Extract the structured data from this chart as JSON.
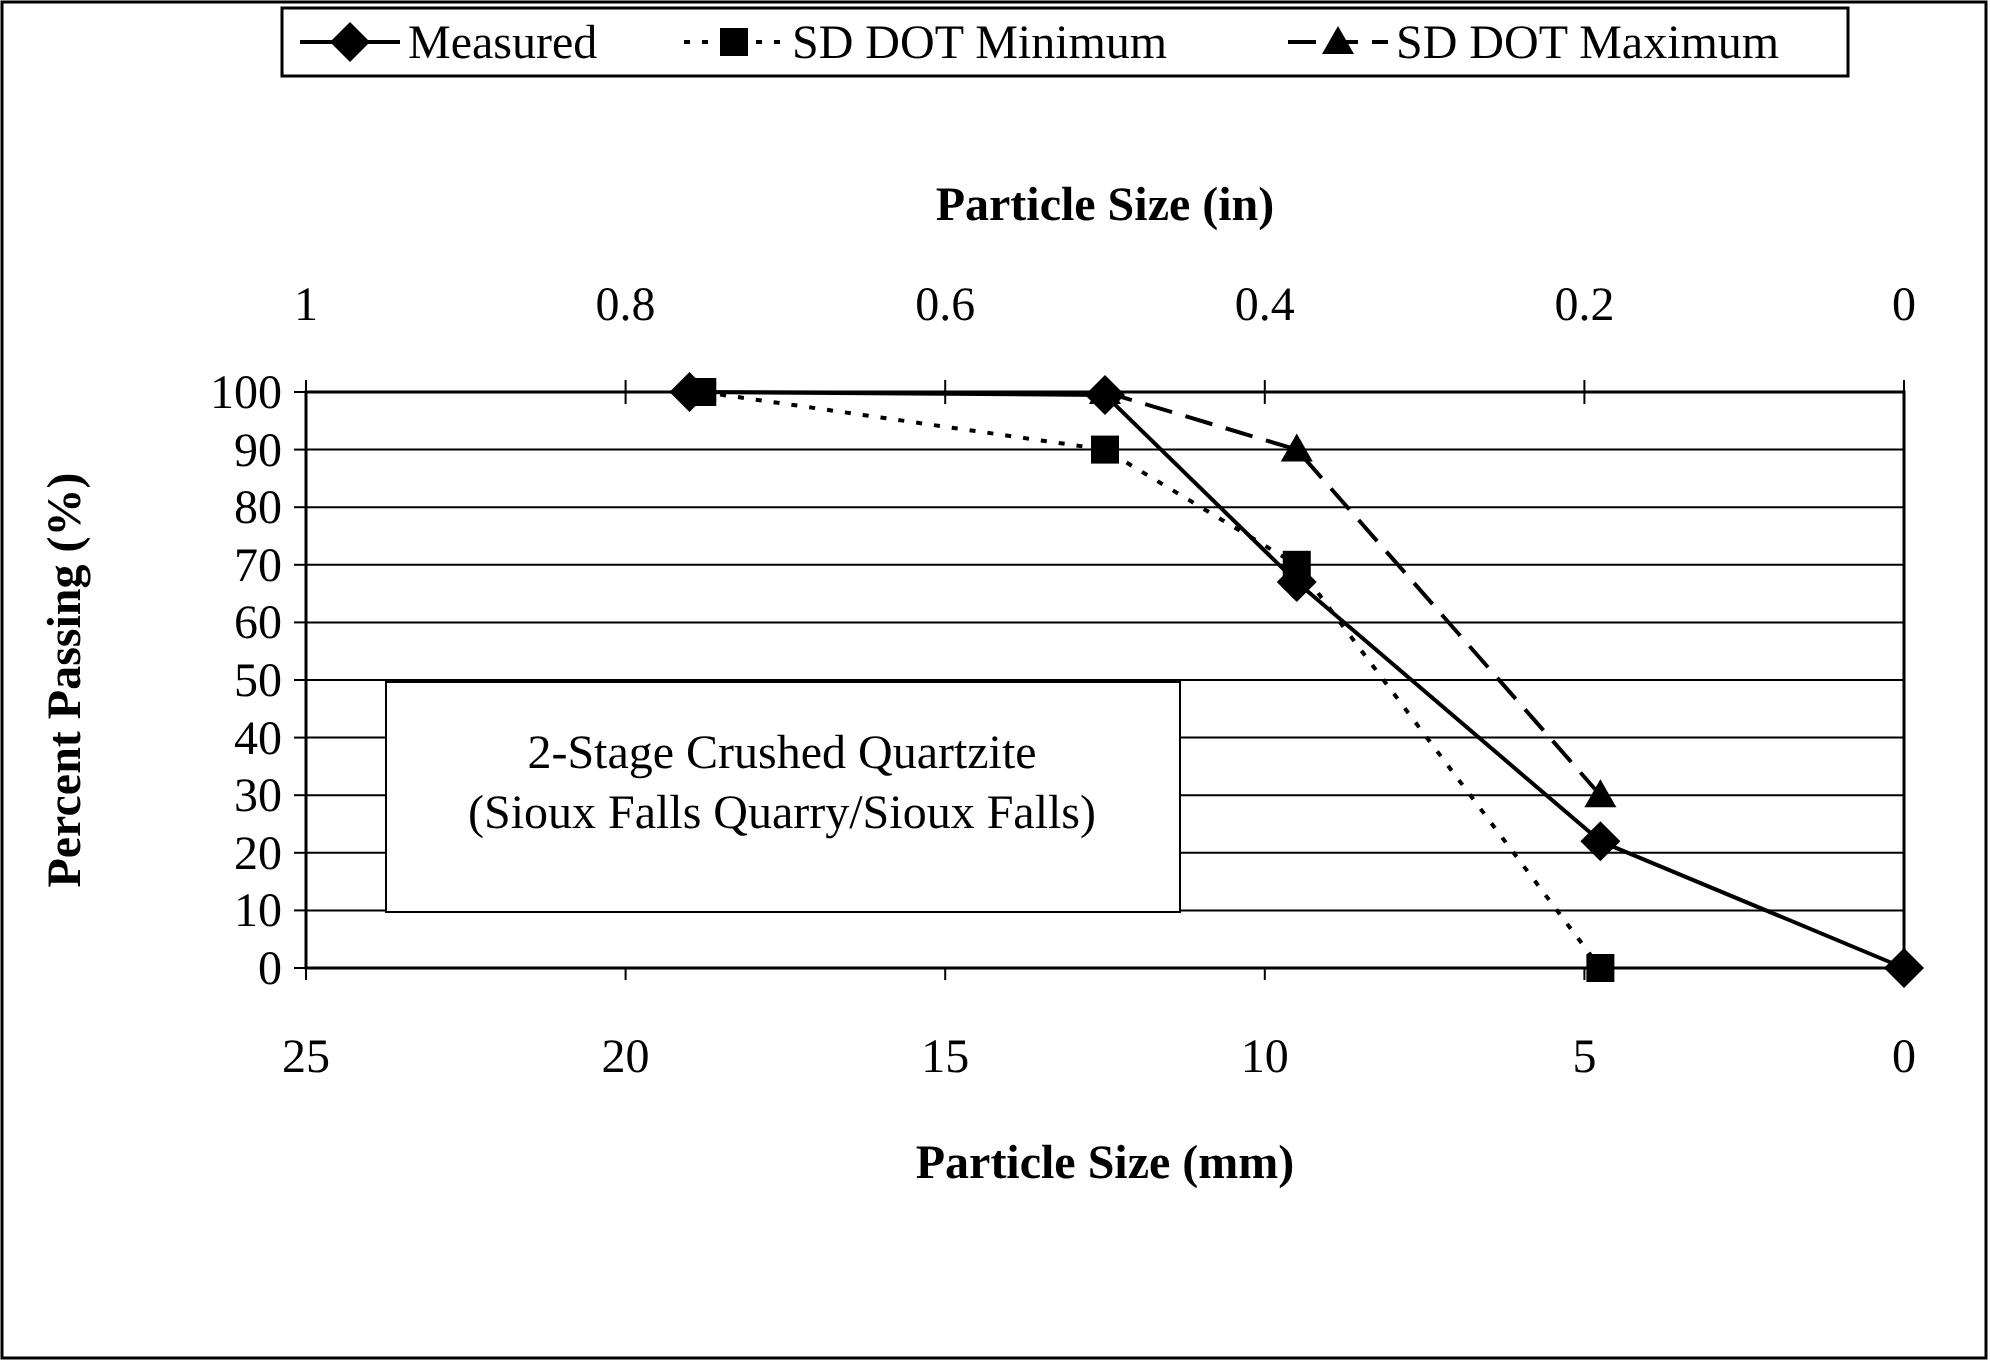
{
  "chart_data": {
    "type": "line",
    "xlabel": "Particle Size (mm)",
    "x2label": "Particle Size (in)",
    "ylabel": "Percent Passing (%)",
    "xlim": [
      25,
      0
    ],
    "xticks": [
      25,
      20,
      15,
      10,
      5,
      0
    ],
    "x2lim": [
      1,
      0
    ],
    "x2ticks": [
      1,
      0.8,
      0.6,
      0.4,
      0.2,
      0
    ],
    "ylim": [
      0,
      100
    ],
    "yticks": [
      0,
      10,
      20,
      30,
      40,
      50,
      60,
      70,
      80,
      90,
      100
    ],
    "grid": "y",
    "legend": "top",
    "annotations": [
      "2-Stage Crushed Quartzite\n(Sioux Falls Quarry/Sioux Falls)"
    ],
    "series": [
      {
        "name": "Measured",
        "color": "#000000",
        "marker": "diamond",
        "line_style": "solid",
        "x": [
          19,
          12.5,
          9.5,
          4.75,
          0
        ],
        "values": [
          100,
          99.5,
          67,
          22,
          0
        ]
      },
      {
        "name": "SD DOT Minimum",
        "color": "#000000",
        "marker": "square",
        "line_style": "dotted",
        "x": [
          18.8,
          12.5,
          9.5,
          4.75
        ],
        "values": [
          100,
          90,
          70,
          0
        ]
      },
      {
        "name": "SD DOT Maximum",
        "color": "#000000",
        "marker": "triangle",
        "line_style": "dashed",
        "x": [
          12.5,
          9.5,
          4.75
        ],
        "values": [
          100,
          90,
          30
        ]
      }
    ]
  }
}
